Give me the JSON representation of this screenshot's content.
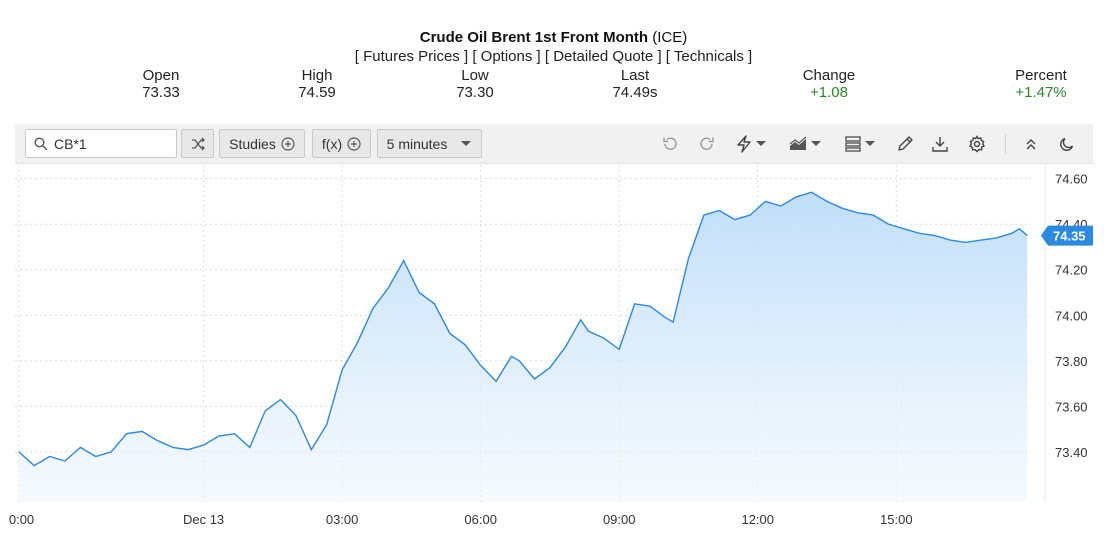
{
  "header": {
    "title_bold": "Crude Oil Brent 1st Front Month",
    "title_suffix": " (ICE)",
    "links": [
      "[ Futures Prices ]",
      "[ Options ]",
      "[ Detailed Quote ]",
      "[ Technicals ]"
    ]
  },
  "quote": {
    "open_label": "Open",
    "open_value": "73.33",
    "high_label": "High",
    "high_value": "74.59",
    "low_label": "Low",
    "low_value": "73.30",
    "last_label": "Last",
    "last_value": "74.49s",
    "change_label": "Change",
    "change_value": "+1.08",
    "percent_label": "Percent",
    "percent_value": "+1.47%",
    "positive_color": "#2a8a2a"
  },
  "toolbar": {
    "symbol_value": "CB*1",
    "studies_label": "Studies",
    "fx_label": "f(x)",
    "interval_label": "5 minutes",
    "icons": [
      "search-icon",
      "compare-icon",
      "plus-circle-icon",
      "undo-icon",
      "redo-icon",
      "lightning-icon",
      "chart-type-icon",
      "layout-icon",
      "pencil-icon",
      "download-icon",
      "gear-icon",
      "chevrons-up-icon",
      "moon-icon"
    ]
  },
  "chart_data": {
    "type": "area",
    "line_color": "#2b8ae0",
    "fill_color": "#cfe6fb",
    "last_price_label": "74.35",
    "y_ticks": [
      "74.60",
      "74.40",
      "74.20",
      "74.00",
      "73.80",
      "73.60",
      "73.40"
    ],
    "ylim": [
      73.18,
      74.66
    ],
    "x_ticks": [
      {
        "label": "0:00",
        "x": 0
      },
      {
        "label": "Dec 13",
        "x": 48
      },
      {
        "label": "03:00",
        "x": 84
      },
      {
        "label": "06:00",
        "x": 120
      },
      {
        "label": "09:00",
        "x": 156
      },
      {
        "label": "12:00",
        "x": 192
      },
      {
        "label": "15:00",
        "x": 228
      }
    ],
    "xlim": [
      -1,
      263
    ],
    "x": [
      0,
      4,
      8,
      12,
      16,
      20,
      24,
      28,
      32,
      36,
      40,
      44,
      48,
      52,
      56,
      60,
      64,
      68,
      72,
      76,
      80,
      84,
      88,
      92,
      96,
      100,
      104,
      108,
      112,
      116,
      120,
      124,
      128,
      130,
      134,
      138,
      142,
      146,
      148,
      152,
      156,
      160,
      164,
      168,
      170,
      174,
      178,
      182,
      186,
      190,
      194,
      198,
      202,
      206,
      210,
      214,
      218,
      222,
      226,
      230,
      234,
      238,
      242,
      246,
      250,
      254,
      258,
      260,
      262
    ],
    "values": [
      73.4,
      73.34,
      73.38,
      73.36,
      73.42,
      73.38,
      73.4,
      73.48,
      73.49,
      73.45,
      73.42,
      73.41,
      73.43,
      73.47,
      73.48,
      73.42,
      73.58,
      73.63,
      73.56,
      73.41,
      73.52,
      73.76,
      73.88,
      74.03,
      74.12,
      74.24,
      74.1,
      74.05,
      73.92,
      73.87,
      73.78,
      73.71,
      73.82,
      73.8,
      73.72,
      73.77,
      73.86,
      73.98,
      73.93,
      73.9,
      73.85,
      74.05,
      74.04,
      73.99,
      73.97,
      74.25,
      74.44,
      74.46,
      74.42,
      74.44,
      74.5,
      74.48,
      74.52,
      74.54,
      74.5,
      74.47,
      74.45,
      74.44,
      74.4,
      74.38,
      74.36,
      74.35,
      74.33,
      74.32,
      74.33,
      74.34,
      74.36,
      74.38,
      74.35
    ]
  }
}
